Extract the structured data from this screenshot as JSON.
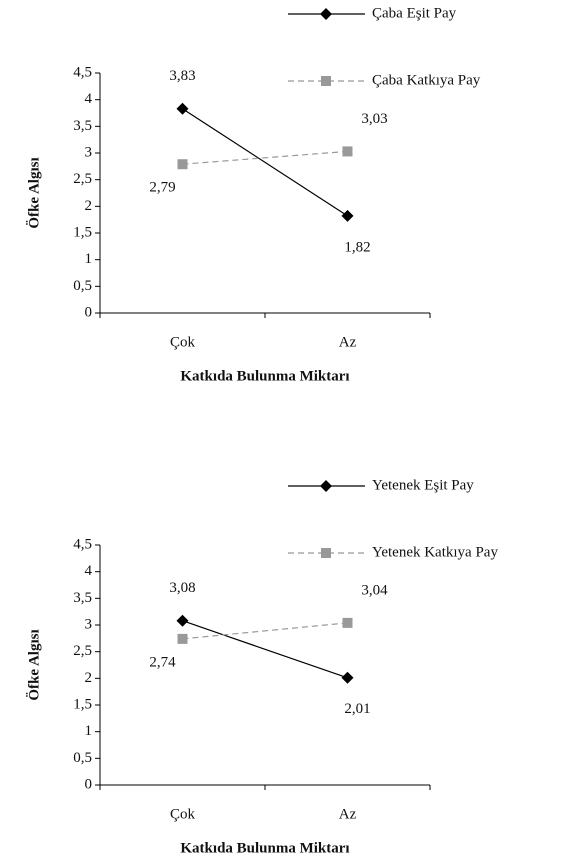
{
  "chart_data": [
    {
      "type": "line",
      "categories": [
        "Çok",
        "Az"
      ],
      "series": [
        {
          "name": "Çaba Eşit Pay",
          "color": "#000000",
          "line_style": "solid",
          "marker": "diamond",
          "values": [
            3.83,
            1.82
          ],
          "value_labels": [
            "3,83",
            "1,82"
          ]
        },
        {
          "name": "Çaba Katkıya Pay",
          "color": "#999999",
          "line_style": "dashed",
          "marker": "square",
          "values": [
            2.79,
            3.03
          ],
          "value_labels": [
            "2,79",
            "3,03"
          ]
        }
      ],
      "ylabel": "Öfke Algısı",
      "xlabel": "Katkıda Bulunma Miktarı",
      "ylim": [
        0,
        4.5
      ],
      "yticks": [
        0,
        {
          "value": 0.5,
          "label": "0,5"
        },
        1,
        {
          "value": 1.5,
          "label": "1,5"
        },
        2,
        {
          "value": 2.5,
          "label": "2,5"
        },
        3,
        {
          "value": 3.5,
          "label": "3,5"
        },
        4,
        {
          "value": 4.5,
          "label": "4,5"
        }
      ],
      "grid": false
    },
    {
      "type": "line",
      "categories": [
        "Çok",
        "Az"
      ],
      "series": [
        {
          "name": "Yetenek Eşit Pay",
          "color": "#000000",
          "line_style": "solid",
          "marker": "diamond",
          "values": [
            3.08,
            2.01
          ],
          "value_labels": [
            "3,08",
            "2,01"
          ]
        },
        {
          "name": "Yetenek Katkıya Pay",
          "color": "#999999",
          "line_style": "dashed",
          "marker": "square",
          "values": [
            2.74,
            3.04
          ],
          "value_labels": [
            "2,74",
            "3,04"
          ]
        }
      ],
      "ylabel": "Öfke Algısı",
      "xlabel": "Katkıda Bulunma Miktarı",
      "ylim": [
        0,
        4.5
      ],
      "yticks": [
        0,
        {
          "value": 0.5,
          "label": "0,5"
        },
        1,
        {
          "value": 1.5,
          "label": "1,5"
        },
        2,
        {
          "value": 2.5,
          "label": "2,5"
        },
        3,
        {
          "value": 3.5,
          "label": "3,5"
        },
        4,
        {
          "value": 4.5,
          "label": "4,5"
        }
      ],
      "grid": false
    }
  ]
}
